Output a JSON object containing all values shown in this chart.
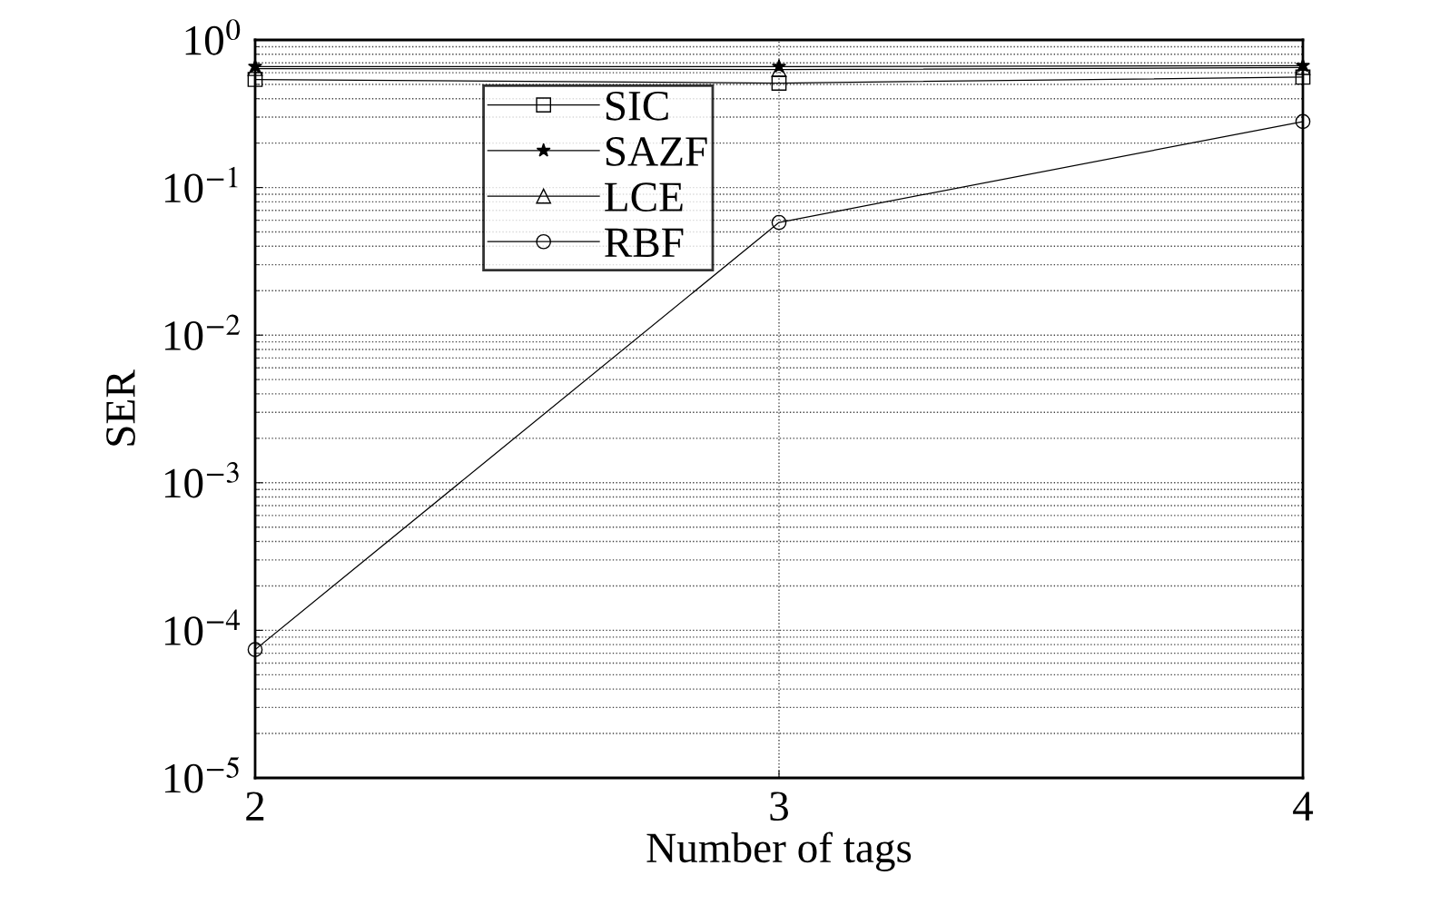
{
  "chart_data": {
    "type": "line",
    "xlabel": "Number of tags",
    "ylabel": "SER",
    "x": [
      2,
      3,
      4
    ],
    "xlim": [
      2,
      4
    ],
    "xticks": [
      2,
      3,
      4
    ],
    "ylim": [
      1e-05,
      1
    ],
    "yticks": [
      {
        "value": 1e-05,
        "label": "10$^{−5}$"
      },
      {
        "value": 0.0001,
        "label": "10$^{−4}$"
      },
      {
        "value": 0.001,
        "label": "10$^{−3}$"
      },
      {
        "value": 0.01,
        "label": "10$^{−2}$"
      },
      {
        "value": 0.1,
        "label": "10$^{−1}$"
      },
      {
        "value": 1,
        "label": "10$^{0}$"
      }
    ],
    "log": "y",
    "grid": true,
    "legend": "top left",
    "series": [
      {
        "name": "SIC",
        "color": "#000000",
        "marker": "square",
        "values": [
          0.54,
          0.51,
          0.56
        ]
      },
      {
        "name": "SAZF",
        "color": "#000000",
        "marker": "star",
        "values": [
          0.66,
          0.66,
          0.67
        ]
      },
      {
        "name": "LCE",
        "color": "#000000",
        "marker": "triangle",
        "values": [
          0.64,
          0.63,
          0.65
        ]
      },
      {
        "name": "RBF",
        "color": "#000000",
        "marker": "circle",
        "values": [
          7.4e-05,
          0.058,
          0.28
        ]
      }
    ]
  }
}
